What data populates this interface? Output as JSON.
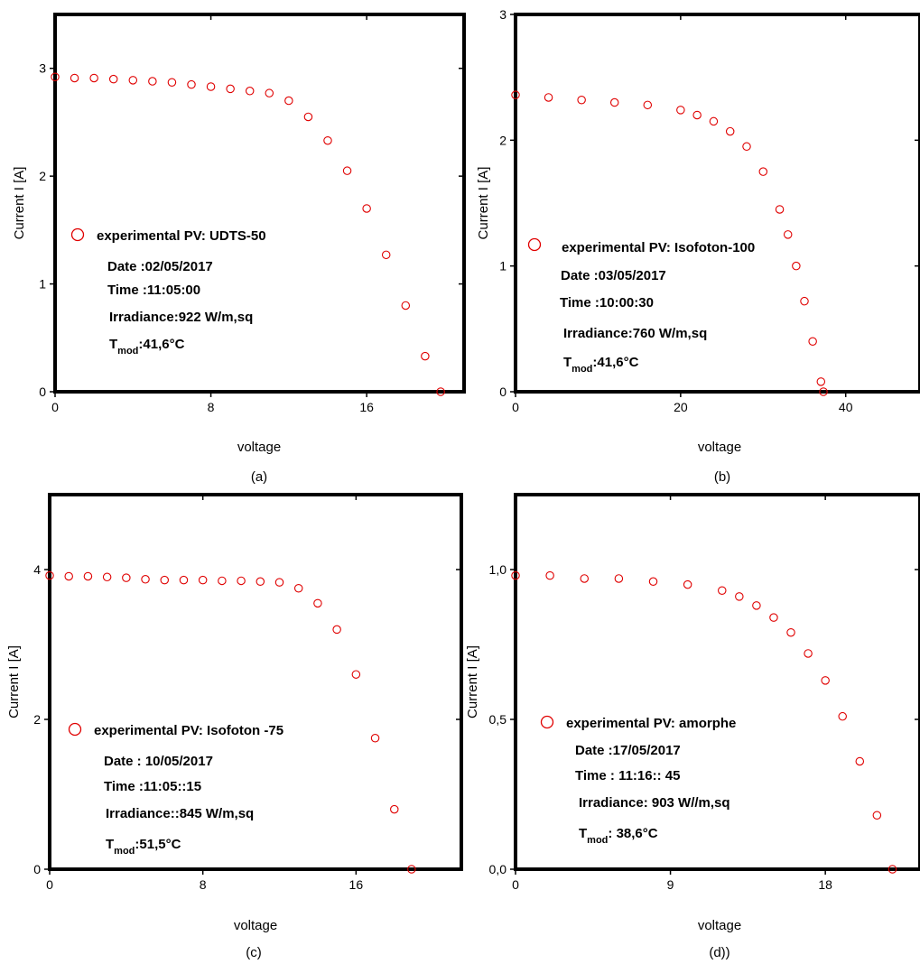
{
  "chart_data": [
    {
      "type": "scatter",
      "panel_label": "(a)",
      "xlabel": "voltage",
      "ylabel": "Current I [A]",
      "xlim": [
        0,
        21
      ],
      "ylim": [
        0,
        3.5
      ],
      "xticks": [
        0,
        8,
        16
      ],
      "xtick_labels": [
        "0",
        "8",
        "16"
      ],
      "yticks": [
        0,
        1,
        2,
        3
      ],
      "ytick_labels": [
        "0",
        "1",
        "2",
        "3"
      ],
      "marker_color": "#e00000",
      "legend_label": "experimental PV: UDTS-50",
      "annotations": [
        "Date :02/05/2017",
        "Time :11:05:00",
        "Irradiance:922 W/m,sq",
        ":41,6°C"
      ],
      "tmod_label": [
        "T",
        "mod"
      ],
      "series": [
        {
          "x": [
            0,
            1,
            2,
            3,
            4,
            5,
            6,
            7,
            8,
            9,
            10,
            11,
            12,
            13,
            14,
            15,
            16,
            17,
            18,
            19,
            19.8
          ],
          "y": [
            2.92,
            2.91,
            2.91,
            2.9,
            2.89,
            2.88,
            2.87,
            2.85,
            2.83,
            2.81,
            2.79,
            2.77,
            2.7,
            2.55,
            2.33,
            2.05,
            1.7,
            1.27,
            0.8,
            0.33,
            0
          ]
        }
      ]
    },
    {
      "type": "scatter",
      "panel_label": "(b)",
      "xlabel": "voltage",
      "ylabel": "Current I [A]",
      "xlim": [
        0,
        49
      ],
      "ylim": [
        0,
        3
      ],
      "xticks": [
        0,
        20,
        40
      ],
      "xtick_labels": [
        "0",
        "20",
        "40"
      ],
      "yticks": [
        0,
        1,
        2,
        3
      ],
      "ytick_labels": [
        "0",
        "1",
        "2",
        "3"
      ],
      "marker_color": "#e00000",
      "legend_label": "experimental PV: Isofoton-100",
      "annotations": [
        "Date :03/05/2017",
        "Time :10:00:30",
        "Irradiance:760 W/m,sq",
        ":41,6°C"
      ],
      "tmod_label": [
        "T",
        "mod"
      ],
      "series": [
        {
          "x": [
            0,
            4,
            8,
            12,
            16,
            20,
            22,
            24,
            26,
            28,
            30,
            32,
            33,
            34,
            35,
            36,
            37,
            37.3
          ],
          "y": [
            2.36,
            2.34,
            2.32,
            2.3,
            2.28,
            2.24,
            2.2,
            2.15,
            2.07,
            1.95,
            1.75,
            1.45,
            1.25,
            1.0,
            0.72,
            0.4,
            0.08,
            0
          ]
        }
      ]
    },
    {
      "type": "scatter",
      "panel_label": "(c)",
      "xlabel": "voltage",
      "ylabel": "Current I [A]",
      "xlim": [
        0,
        21.5
      ],
      "ylim": [
        0,
        5
      ],
      "xticks": [
        0,
        8,
        16
      ],
      "xtick_labels": [
        "0",
        "8",
        "16"
      ],
      "yticks": [
        0,
        2,
        4
      ],
      "ytick_labels": [
        "0",
        "2",
        "4"
      ],
      "marker_color": "#e00000",
      "legend_label": "experimental PV: Isofoton -75",
      "annotations": [
        "Date : 10/05/2017",
        "Time :11:05::15",
        "Irradiance::845 W/m,sq",
        ":51,5°C"
      ],
      "tmod_label": [
        "T",
        "mod"
      ],
      "series": [
        {
          "x": [
            0,
            1,
            2,
            3,
            4,
            5,
            6,
            7,
            8,
            9,
            10,
            11,
            12,
            13,
            14,
            15,
            16,
            17,
            18,
            18.9
          ],
          "y": [
            3.92,
            3.91,
            3.91,
            3.9,
            3.89,
            3.87,
            3.86,
            3.86,
            3.86,
            3.85,
            3.85,
            3.84,
            3.83,
            3.75,
            3.55,
            3.2,
            2.6,
            1.75,
            0.8,
            0
          ]
        }
      ]
    },
    {
      "type": "scatter",
      "panel_label": "(d))",
      "xlabel": "voltage",
      "ylabel": "Current I [A]",
      "xlim": [
        0,
        23.5
      ],
      "ylim": [
        0,
        1.25
      ],
      "xticks": [
        0,
        9,
        18
      ],
      "xtick_labels": [
        "0",
        "9",
        "18"
      ],
      "yticks": [
        0,
        0.5,
        1.0
      ],
      "ytick_labels": [
        "0,0",
        "0,5",
        "1,0"
      ],
      "marker_color": "#e00000",
      "legend_label": "experimental PV: amorphe",
      "annotations": [
        "Date :17/05/2017",
        "Time : 11:16:: 45",
        "Irradiance: 903 W//m,sq",
        ": 38,6°C"
      ],
      "tmod_label": [
        "T",
        "mod"
      ],
      "series": [
        {
          "x": [
            0,
            2,
            4,
            6,
            8,
            10,
            12,
            13,
            14,
            15,
            16,
            17,
            18,
            19,
            20,
            21,
            21.9
          ],
          "y": [
            0.98,
            0.98,
            0.97,
            0.97,
            0.96,
            0.95,
            0.93,
            0.91,
            0.88,
            0.84,
            0.79,
            0.72,
            0.63,
            0.51,
            0.36,
            0.18,
            0
          ]
        }
      ]
    }
  ]
}
